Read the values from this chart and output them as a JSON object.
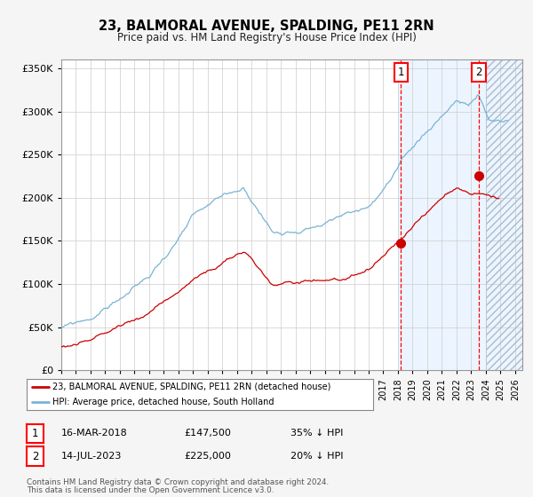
{
  "title": "23, BALMORAL AVENUE, SPALDING, PE11 2RN",
  "subtitle": "Price paid vs. HM Land Registry's House Price Index (HPI)",
  "legend_line1": "23, BALMORAL AVENUE, SPALDING, PE11 2RN (detached house)",
  "legend_line2": "HPI: Average price, detached house, South Holland",
  "footer1": "Contains HM Land Registry data © Crown copyright and database right 2024.",
  "footer2": "This data is licensed under the Open Government Licence v3.0.",
  "annotation1_date": "16-MAR-2018",
  "annotation1_price": "£147,500",
  "annotation1_hpi": "35% ↓ HPI",
  "annotation2_date": "14-JUL-2023",
  "annotation2_price": "£225,000",
  "annotation2_hpi": "20% ↓ HPI",
  "sale1_year": 2018.21,
  "sale1_price": 147500,
  "sale2_year": 2023.54,
  "sale2_price": 225000,
  "hpi_color": "#7ab3d4",
  "price_color": "#cc0000",
  "fig_bg": "#f5f5f5",
  "plot_bg": "#ffffff",
  "grid_color": "#cccccc",
  "shade_color": "#ddeeff",
  "hatch_color": "#aabbcc",
  "ylim": [
    0,
    360000
  ],
  "xlim_start": 1995,
  "xlim_end": 2026.5,
  "yticks": [
    0,
    50000,
    100000,
    150000,
    200000,
    250000,
    300000,
    350000
  ],
  "xticks": [
    1995,
    1996,
    1997,
    1998,
    1999,
    2000,
    2001,
    2002,
    2003,
    2004,
    2005,
    2006,
    2007,
    2008,
    2009,
    2010,
    2011,
    2012,
    2013,
    2014,
    2015,
    2016,
    2017,
    2018,
    2019,
    2020,
    2021,
    2022,
    2023,
    2024,
    2025,
    2026
  ]
}
